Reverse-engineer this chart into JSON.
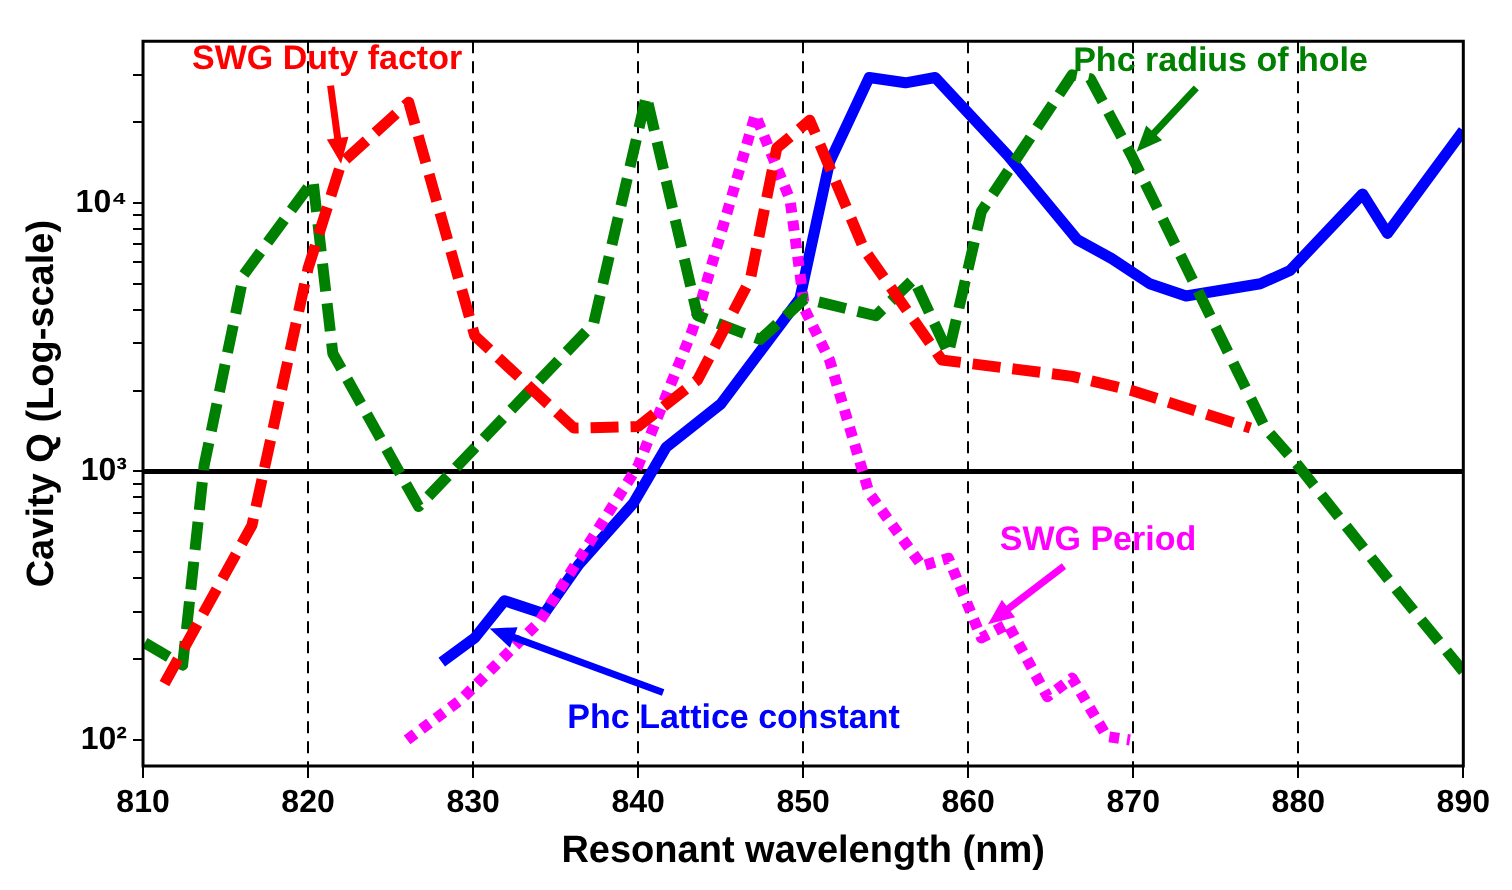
{
  "chart_data": {
    "type": "line",
    "xlabel": "Resonant wavelength (nm)",
    "ylabel": "Cavity Q (Log-scale)",
    "log": "y",
    "grid": "x",
    "legend": false,
    "marker": "none",
    "xlim": [
      810,
      890
    ],
    "xticks": [
      810,
      820,
      830,
      840,
      850,
      860,
      870,
      880,
      890
    ],
    "ylim": [
      80,
      40000
    ],
    "yticks": [
      {
        "value": 100,
        "label": "10²"
      },
      {
        "value": 200,
        "label": null
      },
      {
        "value": 300,
        "label": null
      },
      {
        "value": 400,
        "label": null
      },
      {
        "value": 500,
        "label": null
      },
      {
        "value": 600,
        "label": null
      },
      {
        "value": 700,
        "label": null
      },
      {
        "value": 800,
        "label": null
      },
      {
        "value": 900,
        "label": null
      },
      {
        "value": 1000,
        "label": "10³"
      },
      {
        "value": 2000,
        "label": null
      },
      {
        "value": 3000,
        "label": null
      },
      {
        "value": 4000,
        "label": null
      },
      {
        "value": 5000,
        "label": null
      },
      {
        "value": 6000,
        "label": null
      },
      {
        "value": 7000,
        "label": null
      },
      {
        "value": 8000,
        "label": null
      },
      {
        "value": 9000,
        "label": null
      },
      {
        "value": 10000,
        "label": "10⁴"
      },
      {
        "value": 20000,
        "label": null
      },
      {
        "value": 30000,
        "label": null
      }
    ],
    "ref_lines": [
      {
        "axis": "y",
        "value": 1000,
        "color": "#000000",
        "line_style": "solid"
      }
    ],
    "annotations": [
      {
        "text": "SWG Duty factor",
        "x": 822,
        "y": 14000
      },
      {
        "text": "Phc radius of hole",
        "x": 870.2,
        "y": 15500
      },
      {
        "text": "SWG Period",
        "x": 861.2,
        "y": 270
      },
      {
        "text": "Phc Lattice constant",
        "x": 831,
        "y": 260
      }
    ],
    "series": [
      {
        "color": "#ff0000",
        "line_style": "dashed",
        "x": [
          811.3,
          816.6,
          820,
          822,
          826.1,
          830.1,
          836.1,
          840,
          843.6,
          846.8,
          848.4,
          850.4,
          853.7,
          858.4,
          866.3,
          869.9,
          877.1
        ],
        "values": [
          162,
          630,
          5700,
          14000,
          23700,
          3200,
          1450,
          1470,
          2190,
          5200,
          16000,
          20300,
          6700,
          2600,
          2260,
          2000,
          1450
        ]
      },
      {
        "color": "#008000",
        "line_style": "dashed",
        "x": [
          810.1,
          812.4,
          813.7,
          816.1,
          820.3,
          821.5,
          826.7,
          837.3,
          840.5,
          843.6,
          847.4,
          850.1,
          854.4,
          856.7,
          858.8,
          860.8,
          866.3,
          867.4,
          869.9,
          878,
          880,
          886,
          890
        ],
        "values": [
          230,
          190,
          1050,
          5400,
          12100,
          2750,
          740,
          3550,
          25000,
          3800,
          3100,
          4400,
          3800,
          5200,
          2750,
          9300,
          30000,
          29000,
          15000,
          1450,
          1050,
          360,
          180
        ]
      },
      {
        "color": "#ff00ff",
        "line_style": "dotted",
        "x": [
          826,
          829.3,
          834,
          840,
          843.3,
          845.3,
          847.1,
          849.2,
          850.1,
          851.6,
          854,
          857.2,
          858.8,
          860.8,
          862.4,
          864.8,
          866.3,
          868.4,
          869.8
        ],
        "values": [
          100,
          142,
          275,
          1050,
          3370,
          8800,
          21300,
          10300,
          4000,
          2600,
          830,
          445,
          475,
          240,
          270,
          145,
          170,
          103,
          100
        ]
      },
      {
        "color": "#0000ff",
        "line_style": "solid",
        "x": [
          828.1,
          830.1,
          831.9,
          834.3,
          836.4,
          839.7,
          841.7,
          845,
          849.8,
          851.6,
          854,
          856.2,
          858,
          862.4,
          866.6,
          868.7,
          871,
          873.2,
          877.7,
          879.5,
          883.9,
          885.4,
          890
        ],
        "values": [
          195,
          240,
          330,
          295,
          450,
          760,
          1230,
          1780,
          4400,
          14200,
          29300,
          28000,
          29300,
          15000,
          7300,
          6200,
          5000,
          4500,
          5000,
          5600,
          10800,
          7700,
          18600
        ]
      }
    ]
  }
}
